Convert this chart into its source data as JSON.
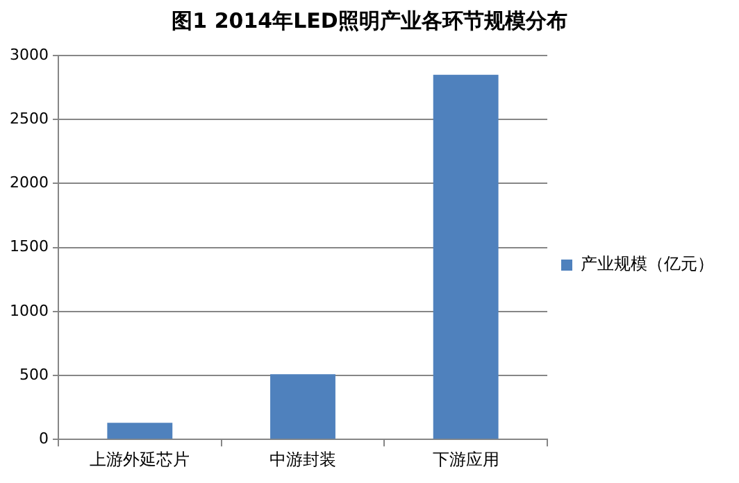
{
  "chart_data": {
    "type": "bar",
    "title": "图1  2014年LED照明产业各环节规模分布",
    "categories": [
      "上游外延芯片",
      "中游封装",
      "下游应用"
    ],
    "series": [
      {
        "name": "产业规模（亿元）",
        "color": "#4f81bd",
        "values": [
          130,
          510,
          2850
        ]
      }
    ],
    "ylim": [
      0,
      3000
    ],
    "yticks": [
      0,
      500,
      1000,
      1500,
      2000,
      2500,
      3000
    ],
    "grid": "y",
    "legend": "right"
  }
}
